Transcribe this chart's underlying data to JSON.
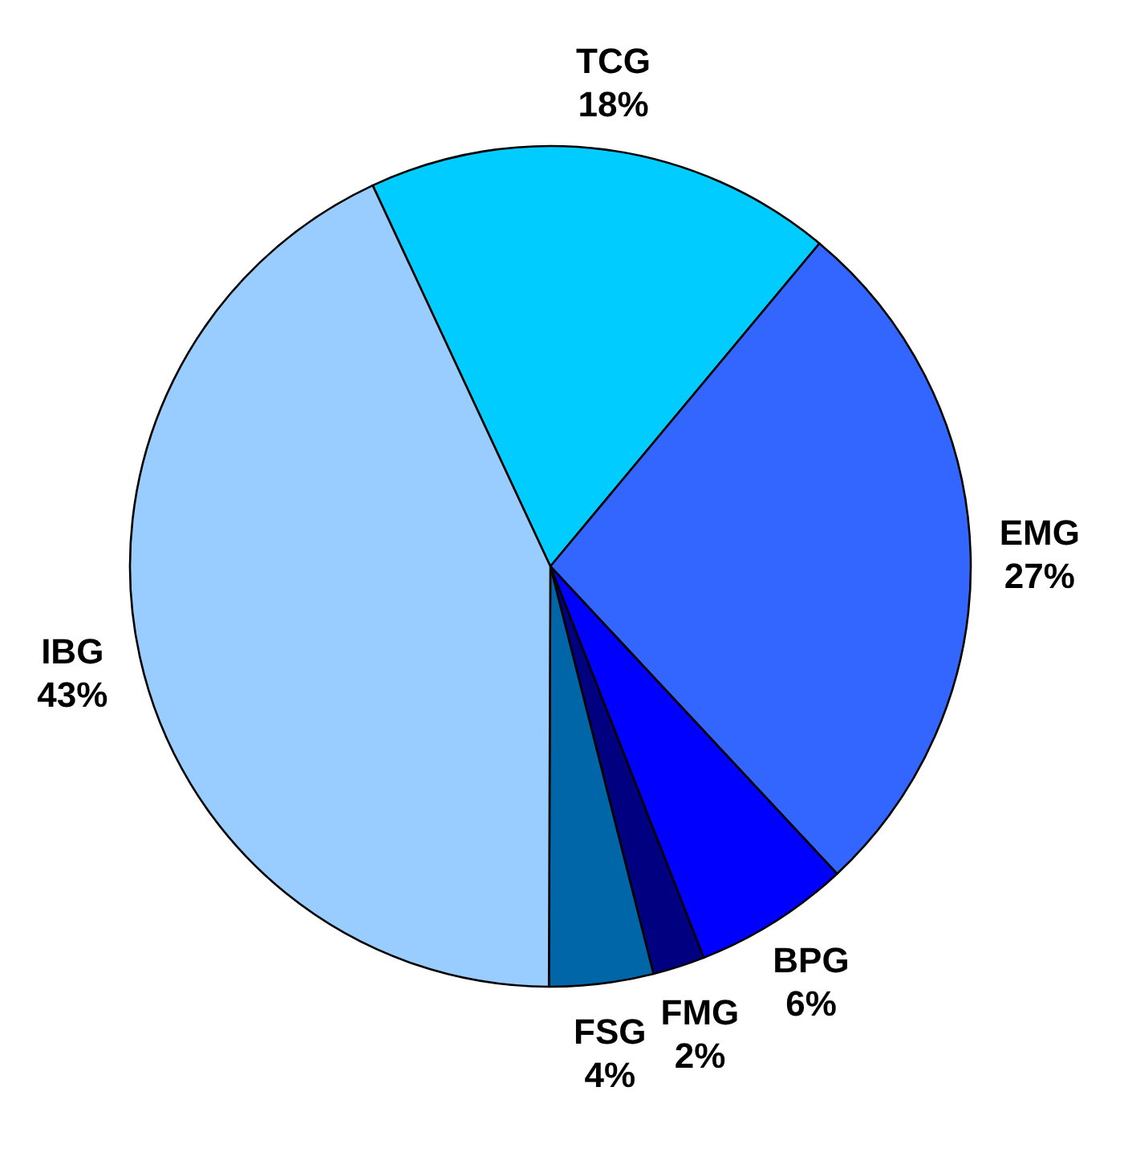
{
  "chart_data": {
    "type": "pie",
    "categories": [
      "TCG",
      "EMG",
      "BPG",
      "FMG",
      "FSG",
      "IBG"
    ],
    "values": [
      18,
      27,
      6,
      2,
      4,
      43
    ],
    "colors": [
      "#00ccff",
      "#3366ff",
      "#0000ff",
      "#000080",
      "#0066a8",
      "#99ccff"
    ],
    "value_labels": [
      "18%",
      "27%",
      "6%",
      "2%",
      "4%",
      "43%"
    ]
  }
}
